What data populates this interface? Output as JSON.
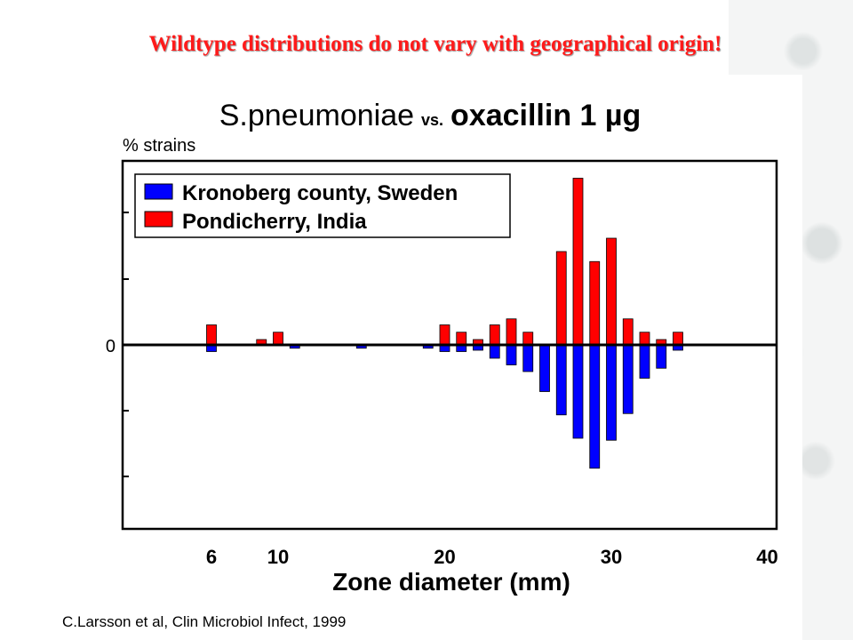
{
  "slide": {
    "title": "Wildtype distributions do not vary with geographical origin!",
    "citation": "C.Larsson et al, Clin Microbiol Infect, 1999"
  },
  "chart_data": {
    "type": "bar",
    "title_main": "S.pneumoniae",
    "title_vs": "vs.",
    "title_drug": "oxacillin 1 µg",
    "ylabel": "% strains",
    "xlabel": "Zone diameter (mm)",
    "x_ticks": [
      "6",
      "10",
      "20",
      "30",
      "40"
    ],
    "y_tick_label": "0",
    "y_range_note": "mirrored: Pondicherry plotted above 0, Kronoberg plotted below 0",
    "legend_position": "top-left",
    "colors": {
      "kronoberg": "#0000ff",
      "pondicherry": "#ff0000"
    },
    "series": [
      {
        "name": "Kronoberg county, Sweden",
        "direction": "down",
        "x": [
          6,
          11,
          15,
          19,
          20,
          21,
          22,
          23,
          24,
          25,
          26,
          27,
          28,
          29,
          30,
          31,
          32,
          33,
          34
        ],
        "values": [
          1,
          0.5,
          0.5,
          0.5,
          1,
          1,
          0.8,
          2,
          3,
          4,
          7,
          10.5,
          14,
          18.5,
          14.3,
          10.3,
          5,
          3.5,
          0.8
        ]
      },
      {
        "name": "Pondicherry, India",
        "direction": "up",
        "x": [
          6,
          9,
          10,
          20,
          21,
          22,
          23,
          24,
          25,
          27,
          28,
          29,
          30,
          31,
          32,
          33,
          34
        ],
        "values": [
          3,
          0.8,
          1.9,
          3,
          1.9,
          0.8,
          3,
          3.9,
          1.9,
          14,
          25,
          12.5,
          16,
          3.9,
          1.9,
          0.8,
          1.9
        ]
      }
    ]
  }
}
